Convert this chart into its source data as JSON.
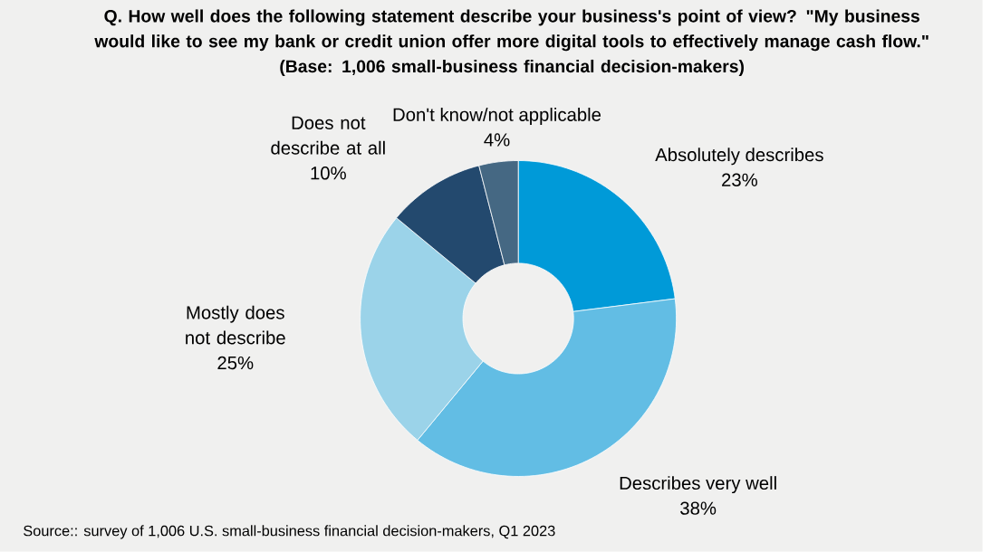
{
  "chart_data": {
    "type": "donut",
    "title": "Q. How well does the following statement describe your business's point of view? \"My business would like to see my bank or credit union offer more digital tools to effectively manage cash flow.\"",
    "subtitle": "(Base: 1,006 small-business financial decision-makers)",
    "categories": [
      "Absolutely describes",
      "Describes very well",
      "Mostly does not describe",
      "Does not describe at all",
      "Don't know/not applicable"
    ],
    "values": [
      23,
      38,
      25,
      10,
      4
    ],
    "value_labels": [
      "23%",
      "38%",
      "25%",
      "10%",
      "4%"
    ],
    "colors": [
      "#009ad8",
      "#62bde4",
      "#9bd3e9",
      "#23496e",
      "#456883"
    ],
    "legend": false,
    "annotations": [
      "Source:: survey of 1,006 U.S. small-business financial decision-makers, Q1 2023"
    ]
  }
}
